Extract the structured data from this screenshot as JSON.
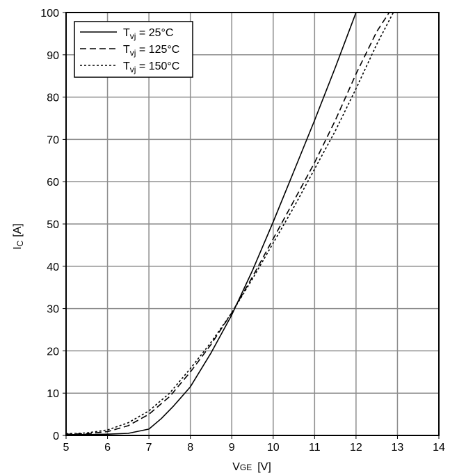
{
  "chart_data": {
    "type": "line",
    "title": "",
    "xlabel": {
      "main": "V",
      "sub": "GE",
      "unit": "[V]"
    },
    "ylabel": {
      "main": "I",
      "sub": "C",
      "unit": "[A]"
    },
    "xlim": [
      5,
      14
    ],
    "ylim": [
      0,
      100
    ],
    "x_ticks": [
      "5",
      "6",
      "7",
      "8",
      "9",
      "10",
      "11",
      "12",
      "13",
      "14"
    ],
    "y_ticks": [
      "0",
      "10",
      "20",
      "30",
      "40",
      "50",
      "60",
      "70",
      "80",
      "90",
      "100"
    ],
    "grid": true,
    "legend_position": "top-left",
    "series": [
      {
        "name": "T",
        "name_sub": "vj",
        "name_rest": " = 25°C",
        "style": "solid",
        "color": "#000000",
        "x": [
          5.0,
          5.5,
          6.0,
          6.5,
          7.0,
          7.3,
          7.6,
          8.0,
          8.5,
          9.0,
          9.5,
          10.0,
          10.5,
          11.0,
          11.5,
          12.0
        ],
        "y": [
          0.2,
          0.2,
          0.3,
          0.5,
          1.5,
          4.0,
          7.0,
          11.5,
          19.5,
          28.5,
          39.0,
          50.5,
          62.5,
          74.5,
          87.0,
          100.0
        ]
      },
      {
        "name": "T",
        "name_sub": "vj",
        "name_rest": " = 125°C",
        "style": "dashed",
        "color": "#000000",
        "x": [
          5.0,
          5.5,
          6.0,
          6.5,
          7.0,
          7.5,
          8.0,
          8.5,
          9.0,
          9.5,
          10.0,
          10.5,
          11.0,
          11.5,
          12.0,
          12.5,
          12.8
        ],
        "y": [
          0.3,
          0.4,
          0.9,
          2.3,
          5.0,
          9.2,
          15.0,
          21.5,
          29.0,
          37.5,
          46.5,
          55.5,
          64.5,
          74.5,
          85.5,
          95.5,
          100.0
        ]
      },
      {
        "name": "T",
        "name_sub": "vj",
        "name_rest": " = 150°C",
        "style": "dotted",
        "color": "#000000",
        "x": [
          5.0,
          5.5,
          6.0,
          6.5,
          7.0,
          7.5,
          8.0,
          8.5,
          9.0,
          9.5,
          10.0,
          10.5,
          11.0,
          11.5,
          12.0,
          12.5,
          12.9
        ],
        "y": [
          0.4,
          0.6,
          1.3,
          3.0,
          5.8,
          10.0,
          15.8,
          22.0,
          29.0,
          37.0,
          45.5,
          54.0,
          63.0,
          72.0,
          82.0,
          92.5,
          100.0
        ]
      }
    ]
  }
}
